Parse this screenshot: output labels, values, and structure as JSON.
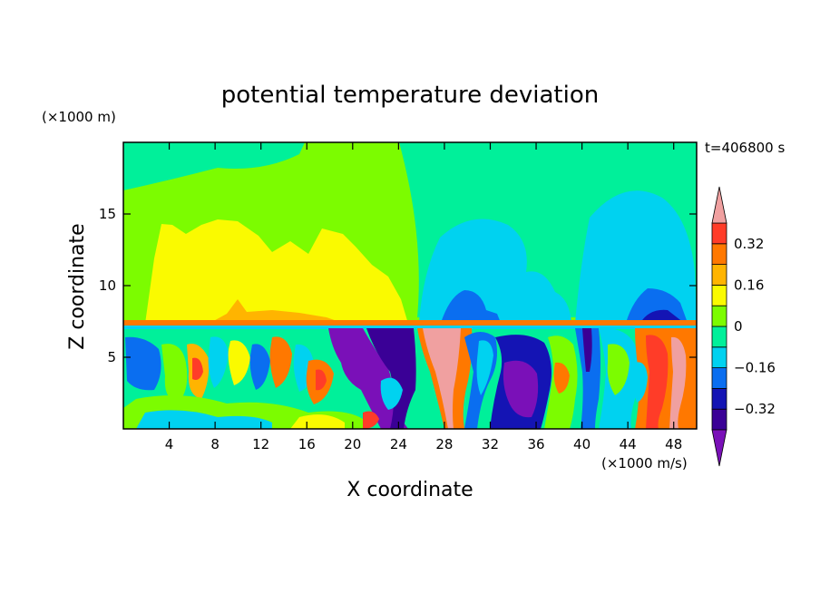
{
  "chart_data": {
    "type": "heatmap",
    "title": "potential temperature deviation",
    "xlabel": "X coordinate",
    "ylabel": "Z coordinate",
    "x_unit": "(×1000 m/s)",
    "y_unit": "(×1000 m)",
    "time_label": "t=406800 s",
    "xlim": [
      0,
      50
    ],
    "ylim": [
      0,
      20
    ],
    "x_ticks": [
      4,
      8,
      12,
      16,
      20,
      24,
      28,
      32,
      36,
      40,
      44,
      48
    ],
    "y_ticks": [
      5,
      10,
      15
    ],
    "colorbar": {
      "levels": [
        -0.48,
        -0.4,
        -0.32,
        -0.24,
        -0.16,
        -0.08,
        0,
        0.08,
        0.16,
        0.24,
        0.32,
        0.4
      ],
      "tick_labels": [
        "0.32",
        "0.16",
        "0",
        "−0.16",
        "−0.32"
      ],
      "tick_values": [
        0.32,
        0.16,
        0,
        -0.16,
        -0.32
      ],
      "colors": [
        "#7a10b8",
        "#3a0096",
        "#1414b4",
        "#0a6ef0",
        "#00d2f0",
        "#00f09a",
        "#7cfc00",
        "#fafa00",
        "#ffb400",
        "#ff7800",
        "#ff3c28",
        "#f0a0a0"
      ]
    }
  }
}
